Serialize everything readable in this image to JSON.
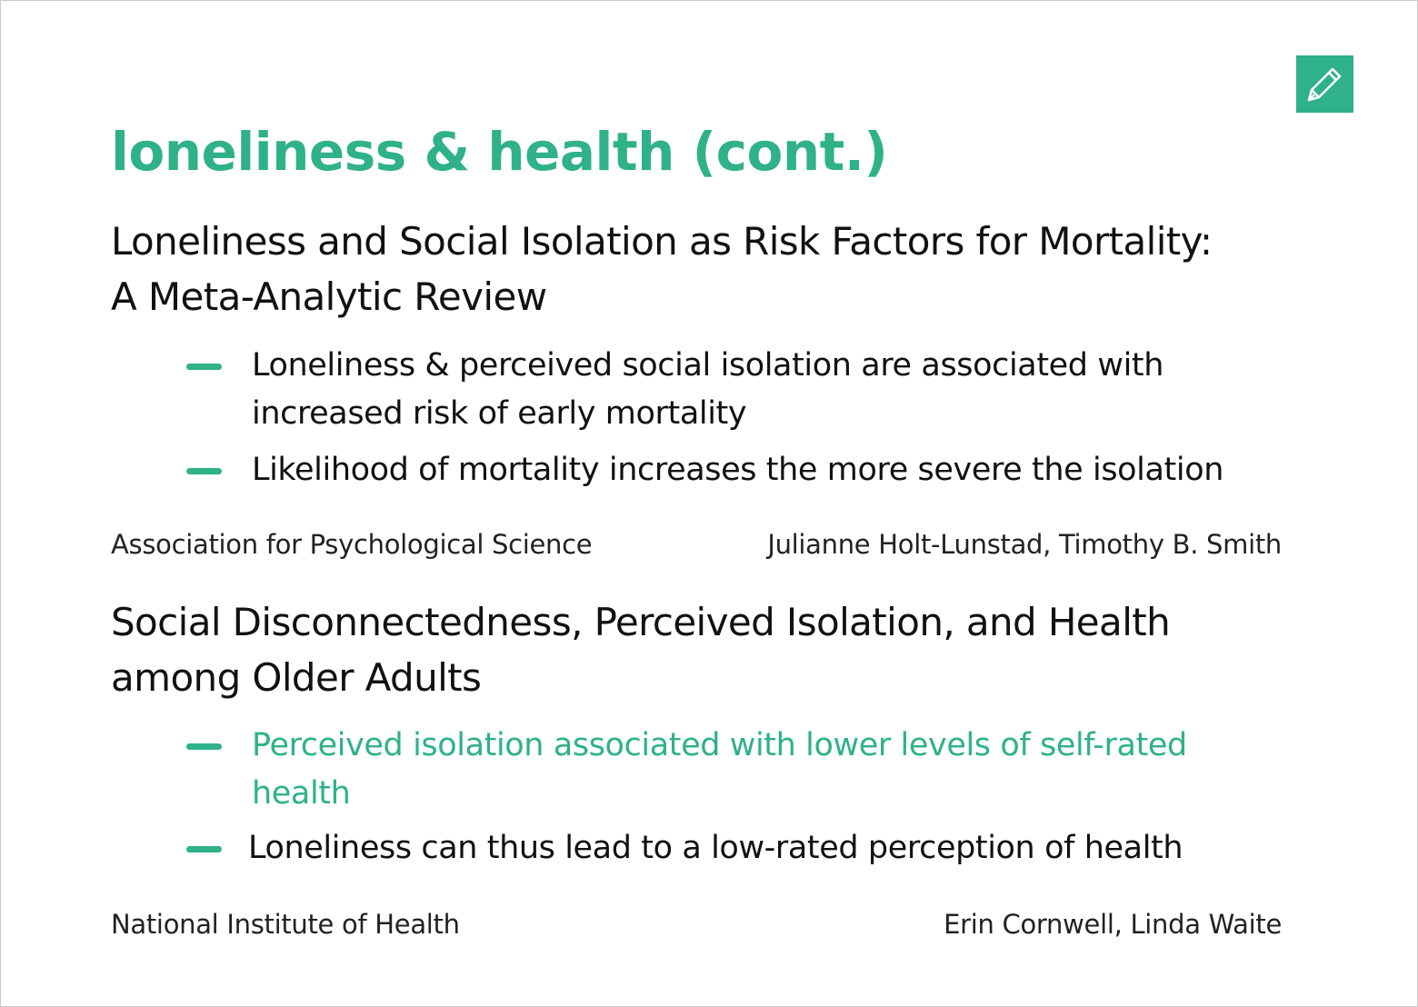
{
  "slide": {
    "title": "loneliness & health (cont.)",
    "edit_icon": "pencil-icon",
    "accent_color": "#2fb189",
    "studies": [
      {
        "title_line1": "Loneliness and Social Isolation as Risk Factors for Mortality:",
        "title_line2": "A Meta-Analytic Review",
        "bullets": [
          {
            "text": "Loneliness & perceived social isolation are associated with increased risk of early mortality",
            "highlighted": false
          },
          {
            "text": "Likelihood of mortality increases the more severe the isolation",
            "highlighted": false
          }
        ],
        "source": "Association for Psychological Science",
        "authors": "Julianne Holt-Lunstad, Timothy B. Smith"
      },
      {
        "title_line1": "Social Disconnectedness, Perceived Isolation, and Health",
        "title_line2": "among Older Adults",
        "bullets": [
          {
            "text": "Perceived isolation associated with lower levels of self-rated health",
            "highlighted": true
          },
          {
            "text": "Loneliness can thus lead to a low-rated perception of health",
            "highlighted": false
          }
        ],
        "source": "National Institute of Health",
        "authors": "Erin Cornwell, Linda Waite"
      }
    ]
  }
}
